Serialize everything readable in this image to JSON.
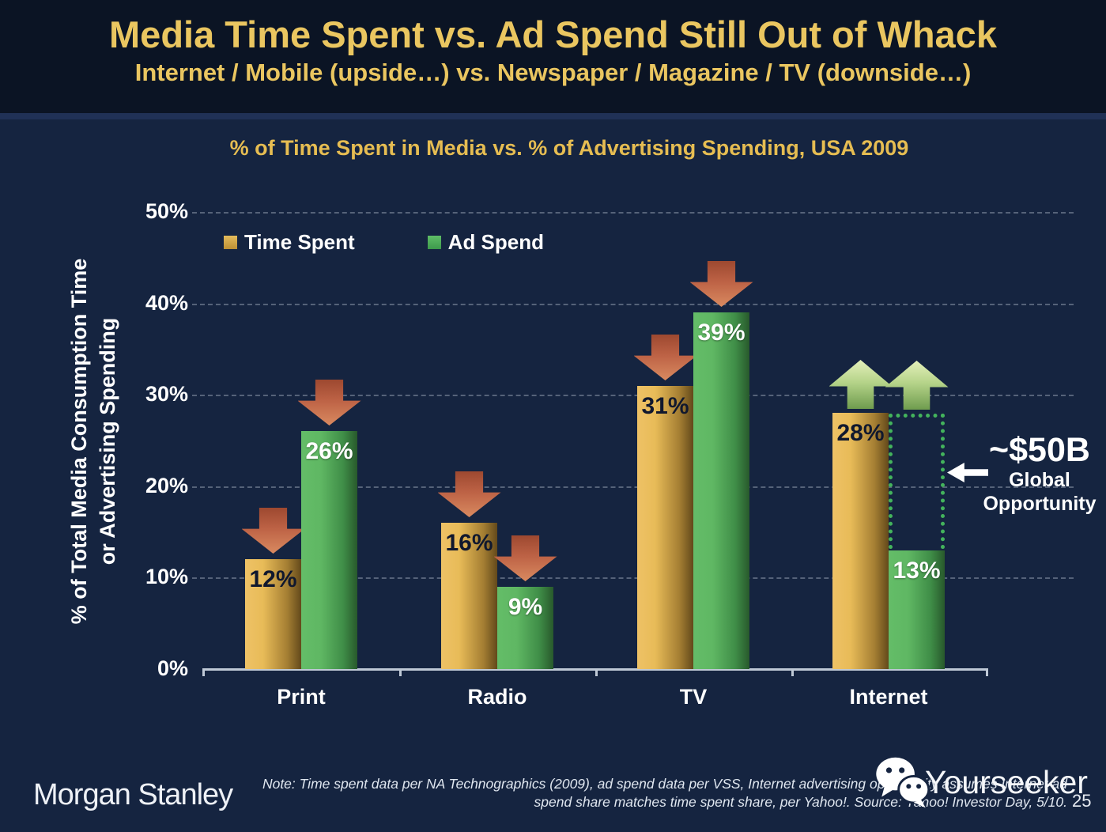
{
  "slide": {
    "title": "Media Time Spent vs. Ad Spend Still Out of Whack",
    "subtitle": "Internet / Mobile (upside…) vs. Newspaper / Magazine / TV (downside…)",
    "page_number": "25"
  },
  "chart_data": {
    "type": "bar",
    "title": "% of Time Spent in Media vs. % of Advertising Spending, USA 2009",
    "ylabel_line1": "% of Total Media Consumption Time",
    "ylabel_line2": "or Advertising Spending",
    "categories": [
      "Print",
      "Radio",
      "TV",
      "Internet"
    ],
    "y_ticks": [
      "0%",
      "10%",
      "20%",
      "30%",
      "40%",
      "50%"
    ],
    "ylim": [
      0,
      50
    ],
    "grid": "dashed horizontal gridlines every 10%",
    "legend_position": "top-left inside plot",
    "series": [
      {
        "name": "Time Spent",
        "color": "#d9ad4f",
        "values": [
          12,
          16,
          31,
          28
        ],
        "labels": [
          "12%",
          "16%",
          "31%",
          "28%"
        ]
      },
      {
        "name": "Ad Spend",
        "color": "#4fae57",
        "values": [
          26,
          9,
          39,
          13
        ],
        "labels": [
          "26%",
          "9%",
          "39%",
          "13%"
        ]
      }
    ],
    "annotations": {
      "down_arrow_color": "#c06a48",
      "down_arrows_on": [
        "Print Time Spent",
        "Print Ad Spend",
        "Radio Time Spent",
        "Radio Ad Spend",
        "TV Time Spent",
        "TV Ad Spend"
      ],
      "up_arrow_color": "#b6d48a",
      "up_arrows_on": [
        "Internet Time Spent",
        "Internet Ad Spend"
      ],
      "opportunity": {
        "value": "~$50B",
        "line1": "Global",
        "line2": "Opportunity",
        "box_from": 13,
        "box_to": 28,
        "box_color": "#43b35c"
      }
    }
  },
  "footer": {
    "logo": "Morgan Stanley",
    "note_line1": "Note: Time spent data per NA Technographics (2009), ad spend data per VSS, Internet advertising opportunity assumes Internet ad",
    "note_line2": "spend share matches time spent share, per Yahoo!. Source: Yahoo! Investor Day, 5/10.",
    "watermark": "Yourseeker"
  }
}
